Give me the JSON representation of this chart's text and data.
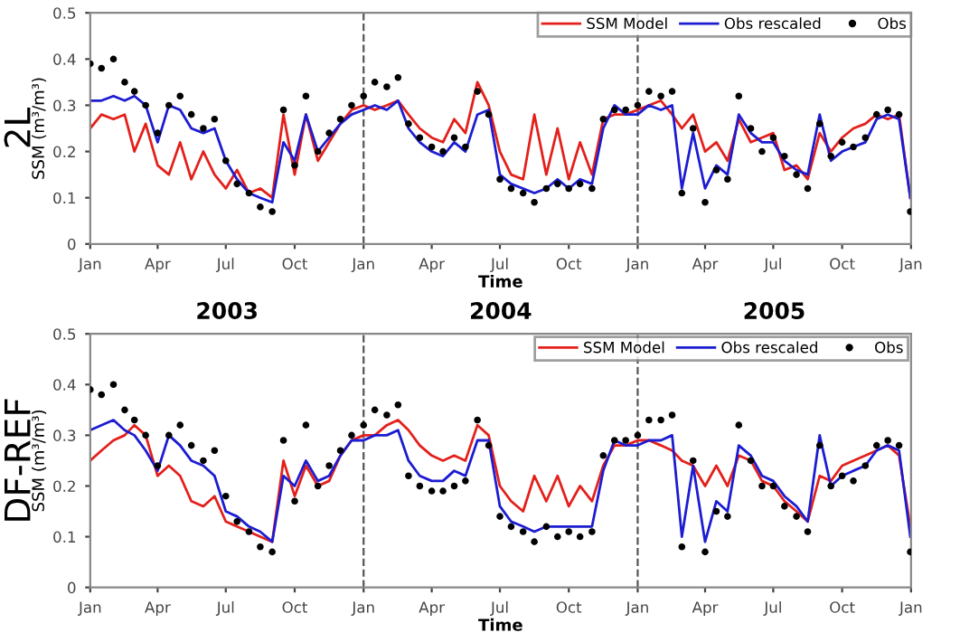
{
  "chart_data": [
    {
      "type": "line",
      "xlabel": "Time",
      "ylabel": "SSM (m³/m³)",
      "annotations": [
        "2L",
        "2003",
        "2004",
        "2005"
      ],
      "x": [
        "2003-01-01",
        "2003-01-16",
        "2003-02-01",
        "2003-02-16",
        "2003-03-01",
        "2003-03-16",
        "2003-04-01",
        "2003-04-16",
        "2003-05-01",
        "2003-05-16",
        "2003-06-01",
        "2003-06-16",
        "2003-07-01",
        "2003-07-16",
        "2003-08-01",
        "2003-08-16",
        "2003-09-01",
        "2003-09-16",
        "2003-10-01",
        "2003-10-16",
        "2003-11-01",
        "2003-11-16",
        "2003-12-01",
        "2003-12-16",
        "2004-01-01",
        "2004-01-16",
        "2004-02-01",
        "2004-02-16",
        "2004-03-01",
        "2004-03-16",
        "2004-04-01",
        "2004-04-16",
        "2004-05-01",
        "2004-05-16",
        "2004-06-01",
        "2004-06-16",
        "2004-07-01",
        "2004-07-16",
        "2004-08-01",
        "2004-08-16",
        "2004-09-01",
        "2004-09-16",
        "2004-10-01",
        "2004-10-16",
        "2004-11-01",
        "2004-11-16",
        "2004-12-01",
        "2004-12-16",
        "2005-01-01",
        "2005-01-16",
        "2005-02-01",
        "2005-02-16",
        "2005-03-01",
        "2005-03-16",
        "2005-04-01",
        "2005-04-16",
        "2005-05-01",
        "2005-05-16",
        "2005-06-01",
        "2005-06-16",
        "2005-07-01",
        "2005-07-16",
        "2005-08-01",
        "2005-08-16",
        "2005-09-01",
        "2005-09-16",
        "2005-10-01",
        "2005-10-16",
        "2005-11-01",
        "2005-11-16",
        "2005-12-01",
        "2005-12-16",
        "2005-12-31"
      ],
      "series": [
        {
          "name": "SSM Model",
          "color": "#e3201b",
          "values": [
            0.25,
            0.28,
            0.27,
            0.28,
            0.2,
            0.26,
            0.17,
            0.15,
            0.22,
            0.14,
            0.2,
            0.15,
            0.12,
            0.16,
            0.11,
            0.12,
            0.1,
            0.28,
            0.15,
            0.28,
            0.18,
            0.22,
            0.26,
            0.29,
            0.3,
            0.29,
            0.3,
            0.31,
            0.28,
            0.25,
            0.23,
            0.22,
            0.27,
            0.24,
            0.35,
            0.3,
            0.2,
            0.15,
            0.14,
            0.28,
            0.15,
            0.25,
            0.14,
            0.22,
            0.15,
            0.27,
            0.28,
            0.28,
            0.29,
            0.3,
            0.31,
            0.28,
            0.25,
            0.28,
            0.2,
            0.22,
            0.18,
            0.27,
            0.22,
            0.23,
            0.24,
            0.16,
            0.17,
            0.14,
            0.24,
            0.2,
            0.23,
            0.25,
            0.26,
            0.28,
            0.27,
            0.28,
            0.1
          ]
        },
        {
          "name": "Obs rescaled",
          "color": "#1c1cd1",
          "values": [
            0.31,
            0.31,
            0.32,
            0.31,
            0.32,
            0.3,
            0.22,
            0.3,
            0.29,
            0.25,
            0.24,
            0.25,
            0.18,
            0.14,
            0.11,
            0.1,
            0.09,
            0.22,
            0.18,
            0.28,
            0.2,
            0.23,
            0.26,
            0.28,
            0.29,
            0.3,
            0.29,
            0.31,
            0.25,
            0.22,
            0.2,
            0.19,
            0.22,
            0.2,
            0.28,
            0.29,
            0.15,
            0.13,
            0.12,
            0.11,
            0.12,
            0.14,
            0.12,
            0.14,
            0.13,
            0.25,
            0.3,
            0.28,
            0.28,
            0.3,
            0.29,
            0.3,
            0.12,
            0.24,
            0.12,
            0.17,
            0.15,
            0.28,
            0.24,
            0.22,
            0.22,
            0.18,
            0.16,
            0.15,
            0.28,
            0.18,
            0.2,
            0.21,
            0.22,
            0.27,
            0.28,
            0.27,
            0.1
          ]
        },
        {
          "name": "Obs",
          "type": "scatter",
          "marker": "circle",
          "color": "#000000",
          "values": [
            0.39,
            0.38,
            0.4,
            0.35,
            0.33,
            0.3,
            0.24,
            0.3,
            0.32,
            0.28,
            0.25,
            0.27,
            0.18,
            0.13,
            0.11,
            0.08,
            0.07,
            0.29,
            0.17,
            0.32,
            0.2,
            0.24,
            0.27,
            0.3,
            0.32,
            0.35,
            0.34,
            0.36,
            0.26,
            0.23,
            0.21,
            0.2,
            0.23,
            0.21,
            0.33,
            0.28,
            0.14,
            0.12,
            0.11,
            0.09,
            0.12,
            0.13,
            0.12,
            0.13,
            0.12,
            0.27,
            0.29,
            0.29,
            0.3,
            0.33,
            0.32,
            0.33,
            0.11,
            0.25,
            0.09,
            0.16,
            0.14,
            0.32,
            0.25,
            0.2,
            0.23,
            0.19,
            0.15,
            0.12,
            0.26,
            0.19,
            0.22,
            0.21,
            0.23,
            0.28,
            0.29,
            0.28,
            0.07
          ]
        }
      ],
      "xlim": [
        "2003-01-01",
        "2006-01-01"
      ],
      "xticks": [
        {
          "value": "2003-01-01",
          "label": "Jan"
        },
        {
          "value": "2003-04-01",
          "label": "Apr"
        },
        {
          "value": "2003-07-01",
          "label": "Jul"
        },
        {
          "value": "2003-10-01",
          "label": "Oct"
        },
        {
          "value": "2004-01-01",
          "label": "Jan"
        },
        {
          "value": "2004-04-01",
          "label": "Apr"
        },
        {
          "value": "2004-07-01",
          "label": "Jul"
        },
        {
          "value": "2004-10-01",
          "label": "Oct"
        },
        {
          "value": "2005-01-01",
          "label": "Jan"
        },
        {
          "value": "2005-04-01",
          "label": "Apr"
        },
        {
          "value": "2005-07-01",
          "label": "Jul"
        },
        {
          "value": "2005-10-01",
          "label": "Oct"
        },
        {
          "value": "2006-01-01",
          "label": "Jan"
        }
      ],
      "ylim": [
        0,
        0.5
      ],
      "yticks": [
        0,
        0.1,
        0.2,
        0.3,
        0.4,
        0.5
      ],
      "ref_lines": [
        {
          "axis": "x",
          "value": "2004-01-01",
          "label": null,
          "color": "#555555",
          "line_style": "dashed"
        },
        {
          "axis": "x",
          "value": "2005-01-01",
          "label": null,
          "color": "#555555",
          "line_style": "dashed"
        }
      ],
      "legend": "top right",
      "grid": false
    },
    {
      "type": "line",
      "xlabel": "Time",
      "ylabel": "SSM (m³/m³)",
      "annotations": [
        "DF-REF"
      ],
      "x": [
        "2003-01-01",
        "2003-01-16",
        "2003-02-01",
        "2003-02-16",
        "2003-03-01",
        "2003-03-16",
        "2003-04-01",
        "2003-04-16",
        "2003-05-01",
        "2003-05-16",
        "2003-06-01",
        "2003-06-16",
        "2003-07-01",
        "2003-07-16",
        "2003-08-01",
        "2003-08-16",
        "2003-09-01",
        "2003-09-16",
        "2003-10-01",
        "2003-10-16",
        "2003-11-01",
        "2003-11-16",
        "2003-12-01",
        "2003-12-16",
        "2004-01-01",
        "2004-01-16",
        "2004-02-01",
        "2004-02-16",
        "2004-03-01",
        "2004-03-16",
        "2004-04-01",
        "2004-04-16",
        "2004-05-01",
        "2004-05-16",
        "2004-06-01",
        "2004-06-16",
        "2004-07-01",
        "2004-07-16",
        "2004-08-01",
        "2004-08-16",
        "2004-09-01",
        "2004-09-16",
        "2004-10-01",
        "2004-10-16",
        "2004-11-01",
        "2004-11-16",
        "2004-12-01",
        "2004-12-16",
        "2005-01-01",
        "2005-01-16",
        "2005-02-01",
        "2005-02-16",
        "2005-03-01",
        "2005-03-16",
        "2005-04-01",
        "2005-04-16",
        "2005-05-01",
        "2005-05-16",
        "2005-06-01",
        "2005-06-16",
        "2005-07-01",
        "2005-07-16",
        "2005-08-01",
        "2005-08-16",
        "2005-09-01",
        "2005-09-16",
        "2005-10-01",
        "2005-10-16",
        "2005-11-01",
        "2005-11-16",
        "2005-12-01",
        "2005-12-16",
        "2005-12-31"
      ],
      "series": [
        {
          "name": "SSM Model",
          "color": "#e3201b",
          "values": [
            0.25,
            0.27,
            0.29,
            0.3,
            0.32,
            0.3,
            0.22,
            0.24,
            0.22,
            0.17,
            0.16,
            0.18,
            0.13,
            0.12,
            0.11,
            0.1,
            0.09,
            0.25,
            0.18,
            0.24,
            0.2,
            0.21,
            0.26,
            0.29,
            0.3,
            0.3,
            0.32,
            0.33,
            0.31,
            0.28,
            0.26,
            0.25,
            0.26,
            0.25,
            0.32,
            0.3,
            0.2,
            0.17,
            0.15,
            0.22,
            0.17,
            0.22,
            0.16,
            0.2,
            0.17,
            0.24,
            0.28,
            0.28,
            0.29,
            0.29,
            0.28,
            0.27,
            0.25,
            0.24,
            0.2,
            0.24,
            0.2,
            0.26,
            0.25,
            0.21,
            0.2,
            0.17,
            0.15,
            0.13,
            0.22,
            0.21,
            0.24,
            0.25,
            0.26,
            0.27,
            0.28,
            0.26,
            0.12
          ]
        },
        {
          "name": "Obs rescaled",
          "color": "#1c1cd1",
          "values": [
            0.31,
            0.32,
            0.33,
            0.31,
            0.3,
            0.27,
            0.23,
            0.3,
            0.28,
            0.25,
            0.24,
            0.22,
            0.15,
            0.14,
            0.12,
            0.11,
            0.09,
            0.22,
            0.2,
            0.25,
            0.21,
            0.22,
            0.26,
            0.29,
            0.29,
            0.3,
            0.3,
            0.31,
            0.25,
            0.22,
            0.21,
            0.21,
            0.23,
            0.22,
            0.29,
            0.29,
            0.16,
            0.13,
            0.12,
            0.11,
            0.12,
            0.12,
            0.12,
            0.12,
            0.12,
            0.23,
            0.29,
            0.28,
            0.28,
            0.29,
            0.29,
            0.3,
            0.1,
            0.24,
            0.09,
            0.17,
            0.15,
            0.28,
            0.26,
            0.22,
            0.21,
            0.18,
            0.16,
            0.13,
            0.3,
            0.2,
            0.22,
            0.23,
            0.24,
            0.27,
            0.28,
            0.27,
            0.1
          ]
        },
        {
          "name": "Obs",
          "type": "scatter",
          "marker": "circle",
          "color": "#000000",
          "values": [
            0.39,
            0.38,
            0.4,
            0.35,
            0.33,
            0.3,
            0.24,
            0.3,
            0.32,
            0.28,
            0.25,
            0.27,
            0.18,
            0.13,
            0.11,
            0.08,
            0.07,
            0.29,
            0.17,
            0.32,
            0.2,
            0.24,
            0.27,
            0.3,
            0.32,
            0.35,
            0.34,
            0.36,
            0.22,
            0.2,
            0.19,
            0.19,
            0.2,
            0.21,
            0.33,
            0.28,
            0.14,
            0.12,
            0.11,
            0.09,
            0.12,
            0.1,
            0.11,
            0.1,
            0.11,
            0.26,
            0.29,
            0.29,
            0.3,
            0.33,
            0.33,
            0.34,
            0.08,
            0.25,
            0.07,
            0.15,
            0.14,
            0.32,
            0.25,
            0.2,
            0.2,
            0.16,
            0.14,
            0.11,
            0.28,
            0.2,
            0.22,
            0.21,
            0.24,
            0.28,
            0.29,
            0.28,
            0.07
          ]
        }
      ],
      "xlim": [
        "2003-01-01",
        "2006-01-01"
      ],
      "xticks": [
        {
          "value": "2003-01-01",
          "label": "Jan"
        },
        {
          "value": "2003-04-01",
          "label": "Apr"
        },
        {
          "value": "2003-07-01",
          "label": "Jul"
        },
        {
          "value": "2003-10-01",
          "label": "Oct"
        },
        {
          "value": "2004-01-01",
          "label": "Jan"
        },
        {
          "value": "2004-04-01",
          "label": "Apr"
        },
        {
          "value": "2004-07-01",
          "label": "Jul"
        },
        {
          "value": "2004-10-01",
          "label": "Oct"
        },
        {
          "value": "2005-01-01",
          "label": "Jan"
        },
        {
          "value": "2005-04-01",
          "label": "Apr"
        },
        {
          "value": "2005-07-01",
          "label": "Jul"
        },
        {
          "value": "2005-10-01",
          "label": "Oct"
        },
        {
          "value": "2006-01-01",
          "label": "Jan"
        }
      ],
      "ylim": [
        0,
        0.5
      ],
      "yticks": [
        0,
        0.1,
        0.2,
        0.3,
        0.4,
        0.5
      ],
      "ref_lines": [
        {
          "axis": "x",
          "value": "2004-01-01",
          "label": null,
          "color": "#555555",
          "line_style": "dashed"
        },
        {
          "axis": "x",
          "value": "2005-01-01",
          "label": null,
          "color": "#555555",
          "line_style": "dashed"
        }
      ],
      "legend": "top right",
      "grid": false
    }
  ]
}
